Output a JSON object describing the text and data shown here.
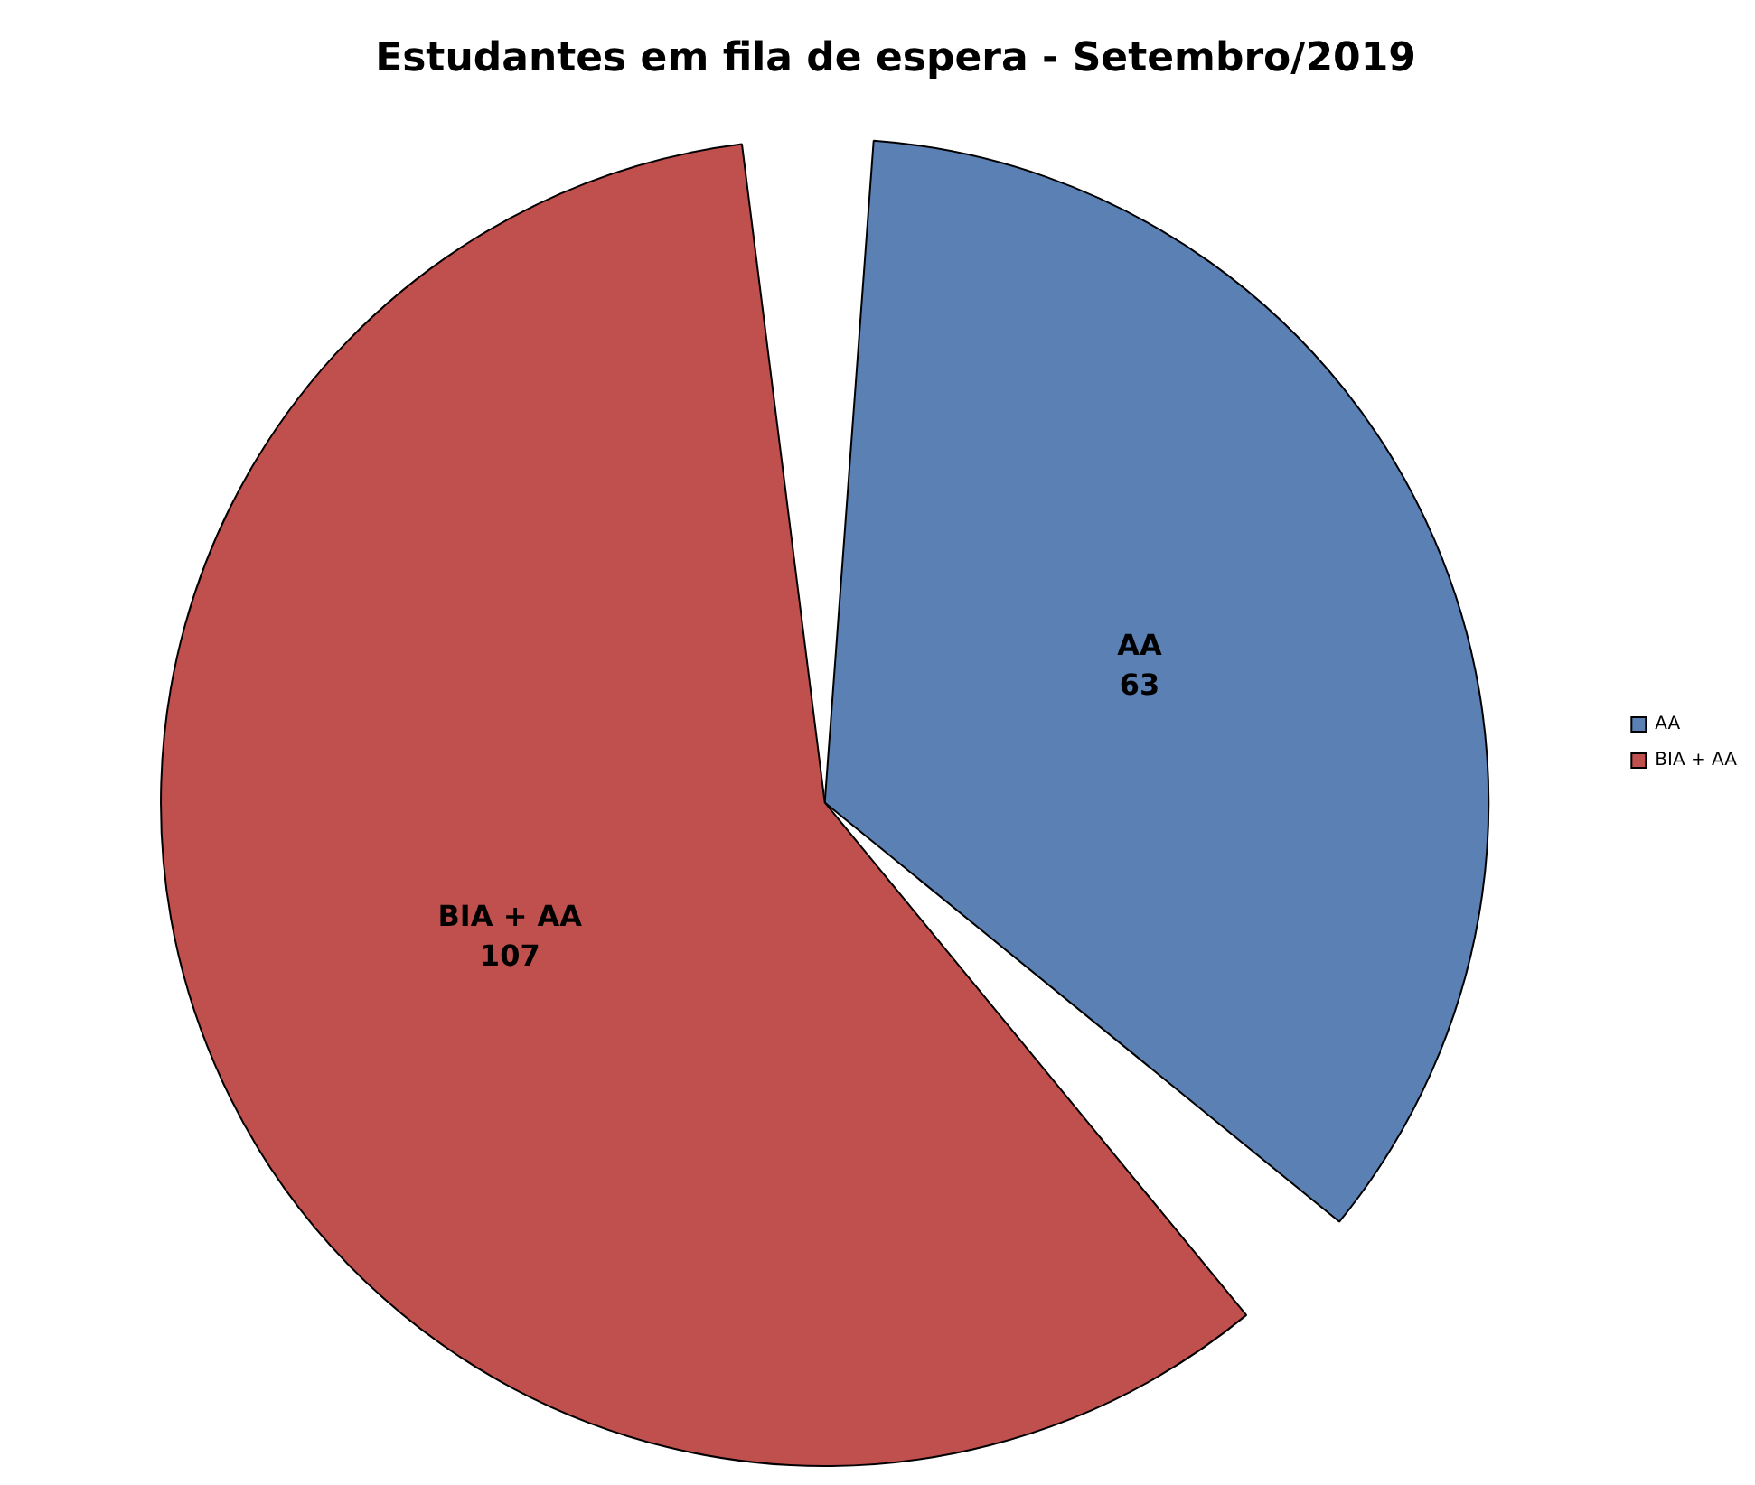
{
  "chart_data": {
    "type": "pie",
    "title": "Estudantes em fila de espera - Setembro/2019",
    "categories": [
      "AA",
      "BIA + AA"
    ],
    "values": [
      63,
      107
    ],
    "colors": [
      "#5b80b4",
      "#c0504d"
    ],
    "data_labels": true,
    "legend": "right"
  }
}
